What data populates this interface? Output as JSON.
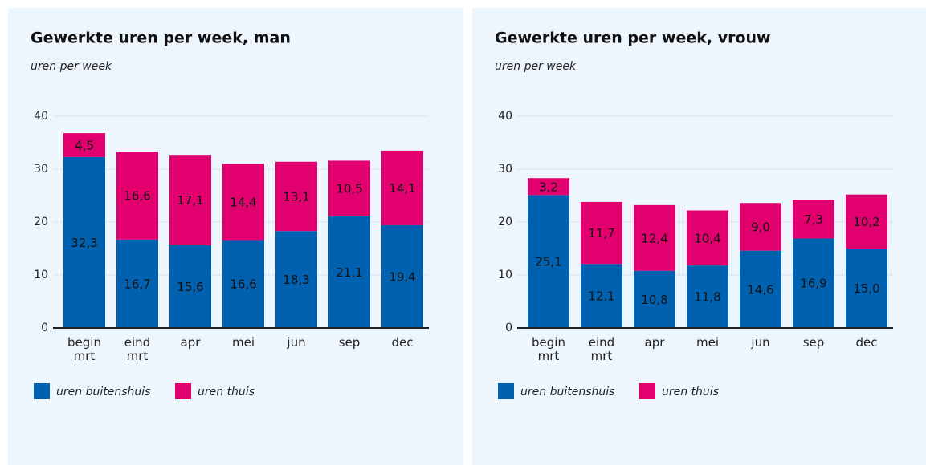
{
  "chart_data": [
    {
      "type": "bar",
      "stacked": true,
      "title": "Gewerkte uren per week, man",
      "subtitle": "uren per week",
      "categories": [
        "begin mrt",
        "eind mrt",
        "apr",
        "mei",
        "jun",
        "sep",
        "dec"
      ],
      "series": [
        {
          "name": "uren buitenshuis",
          "color": "#0061b0",
          "values": [
            32.3,
            16.7,
            15.6,
            16.6,
            18.3,
            21.1,
            19.4
          ],
          "value_labels": [
            "32,3",
            "16,7",
            "15,6",
            "16,6",
            "18,3",
            "21,1",
            "19,4"
          ]
        },
        {
          "name": "uren thuis",
          "color": "#e2006f",
          "values": [
            4.5,
            16.6,
            17.1,
            14.4,
            13.1,
            10.5,
            14.1
          ],
          "value_labels": [
            "4,5",
            "16,6",
            "17,1",
            "14,4",
            "13,1",
            "10,5",
            "14,1"
          ]
        }
      ],
      "ylim": [
        0,
        40
      ],
      "yticks": [
        0,
        10,
        20,
        30,
        40
      ],
      "grid": true,
      "legend": "bottom-left"
    },
    {
      "type": "bar",
      "stacked": true,
      "title": "Gewerkte uren per week, vrouw",
      "subtitle": "uren per week",
      "categories": [
        "begin mrt",
        "eind mrt",
        "apr",
        "mei",
        "jun",
        "sep",
        "dec"
      ],
      "series": [
        {
          "name": "uren buitenshuis",
          "color": "#0061b0",
          "values": [
            25.1,
            12.1,
            10.8,
            11.8,
            14.6,
            16.9,
            15.0
          ],
          "value_labels": [
            "25,1",
            "12,1",
            "10,8",
            "11,8",
            "14,6",
            "16,9",
            "15,0"
          ]
        },
        {
          "name": "uren thuis",
          "color": "#e2006f",
          "values": [
            3.2,
            11.7,
            12.4,
            10.4,
            9.0,
            7.3,
            10.2
          ],
          "value_labels": [
            "3,2",
            "11,7",
            "12,4",
            "10,4",
            "9,0",
            "7,3",
            "10,2"
          ]
        }
      ],
      "ylim": [
        0,
        40
      ],
      "yticks": [
        0,
        10,
        20,
        30,
        40
      ],
      "grid": true,
      "legend": "bottom-left"
    }
  ]
}
